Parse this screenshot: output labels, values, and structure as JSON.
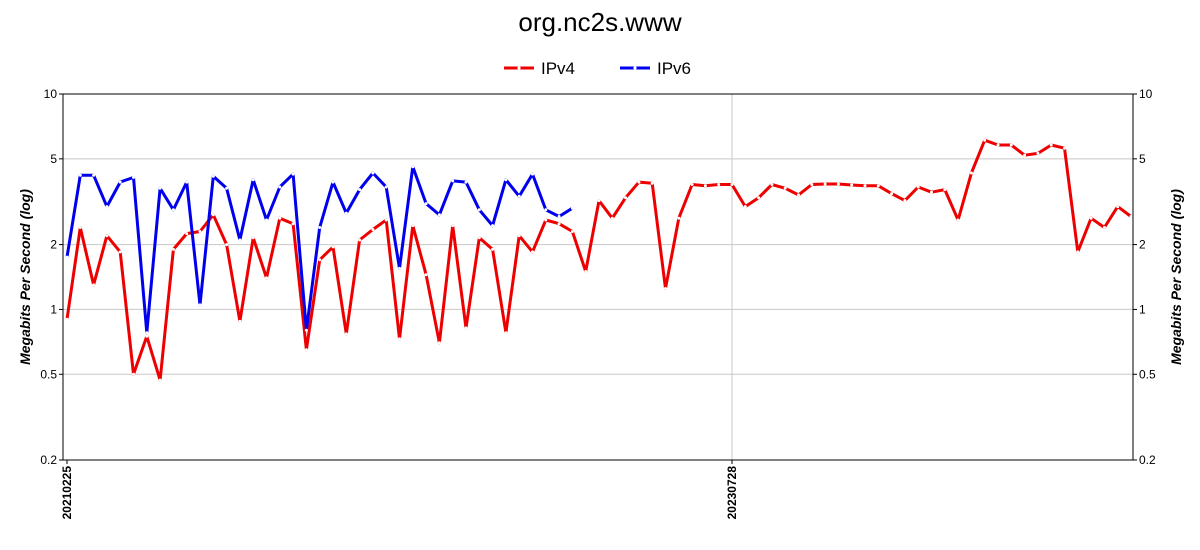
{
  "chart_data": {
    "type": "line",
    "title": "org.nc2s.www",
    "ylabel": "Megabits Per Second (log)",
    "ylabel_right": "Megabits Per Second (log)",
    "yscale": "log",
    "ylim": [
      0.2,
      10
    ],
    "yticks": [
      0.2,
      0.5,
      1,
      2,
      5,
      10
    ],
    "ytick_labels": [
      "0.2",
      "0.5",
      "1",
      "2",
      "5",
      "10"
    ],
    "xtick_labels": [
      "20210225",
      "20230728"
    ],
    "xtick_index": [
      0,
      50
    ],
    "grid": true,
    "legend_position": "top-center",
    "series": [
      {
        "name": "IPv4",
        "color": "#ee0000",
        "values": [
          0.9,
          2.4,
          1.3,
          2.2,
          1.85,
          0.5,
          0.75,
          0.47,
          1.9,
          2.25,
          2.3,
          2.75,
          2.0,
          0.88,
          2.15,
          1.4,
          2.65,
          2.5,
          0.65,
          1.7,
          1.95,
          0.77,
          2.1,
          2.35,
          2.6,
          0.73,
          2.45,
          1.45,
          0.7,
          2.45,
          0.82,
          2.15,
          1.9,
          0.78,
          2.2,
          1.85,
          2.6,
          2.5,
          2.3,
          1.5,
          3.2,
          2.65,
          3.3,
          3.9,
          3.85,
          1.25,
          2.65,
          3.8,
          3.75,
          3.8,
          3.8,
          3.0,
          3.3,
          3.8,
          3.65,
          3.4,
          3.8,
          3.82,
          3.82,
          3.78,
          3.75,
          3.75,
          3.45,
          3.2,
          3.7,
          3.5,
          3.6,
          2.6,
          4.3,
          6.1,
          5.8,
          5.8,
          5.2,
          5.3,
          5.8,
          5.6,
          1.85,
          2.65,
          2.4,
          3.0,
          2.7
        ]
      },
      {
        "name": "IPv6",
        "color": "#0000ee",
        "values": [
          1.75,
          4.2,
          4.2,
          3.0,
          3.9,
          4.1,
          0.78,
          3.65,
          2.9,
          3.9,
          1.05,
          4.15,
          3.65,
          2.1,
          4.0,
          2.6,
          3.7,
          4.25,
          0.8,
          2.4,
          3.9,
          2.8,
          3.6,
          4.3,
          3.7,
          1.55,
          4.6,
          3.1,
          2.75,
          3.95,
          3.9,
          2.9,
          2.45,
          4.0,
          3.35,
          4.25,
          2.9,
          2.7,
          2.95
        ]
      }
    ]
  }
}
